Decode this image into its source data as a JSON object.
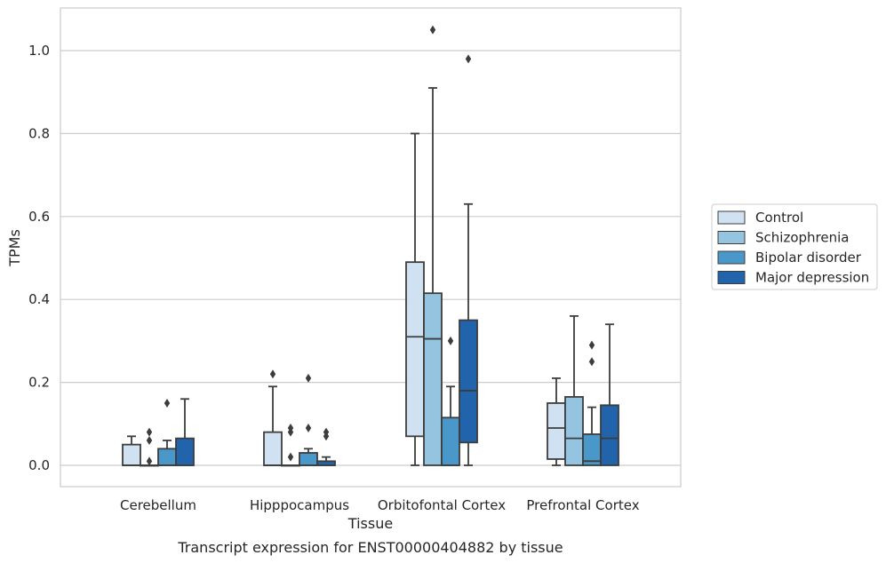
{
  "chart_data": {
    "type": "box",
    "title": "",
    "caption": "Transcript expression for ENST00000404882 by tissue",
    "xlabel": "Tissue",
    "ylabel": "TPMs",
    "ylim": [
      -0.05,
      1.1
    ],
    "yticks": [
      "0.0",
      "0.2",
      "0.4",
      "0.6",
      "0.8",
      "1.0"
    ],
    "ytick_values": [
      0.0,
      0.2,
      0.4,
      0.6,
      0.8,
      1.0
    ],
    "grid": "horizontal",
    "legend_position": "right",
    "categories": [
      "Cerebellum",
      "Hipppocampus",
      "Orbitofontal Cortex",
      "Prefrontal Cortex"
    ],
    "series": [
      {
        "name": "Control",
        "color": "#d0e1f2",
        "boxes": [
          {
            "whisker_low": 0.0,
            "q1": 0.0,
            "median": 0.0,
            "q3": 0.05,
            "whisker_high": 0.07,
            "outliers": []
          },
          {
            "whisker_low": 0.0,
            "q1": 0.0,
            "median": 0.0,
            "q3": 0.08,
            "whisker_high": 0.19,
            "outliers": [
              0.22
            ]
          },
          {
            "whisker_low": 0.0,
            "q1": 0.07,
            "median": 0.31,
            "q3": 0.49,
            "whisker_high": 0.8,
            "outliers": []
          },
          {
            "whisker_low": 0.0,
            "q1": 0.015,
            "median": 0.09,
            "q3": 0.15,
            "whisker_high": 0.21,
            "outliers": []
          }
        ]
      },
      {
        "name": "Schizophrenia",
        "color": "#94c4df",
        "boxes": [
          {
            "whisker_low": 0.0,
            "q1": 0.0,
            "median": 0.0,
            "q3": 0.0,
            "whisker_high": 0.0,
            "outliers": [
              0.01,
              0.06,
              0.08
            ]
          },
          {
            "whisker_low": 0.0,
            "q1": 0.0,
            "median": 0.0,
            "q3": 0.0,
            "whisker_high": 0.0,
            "outliers": [
              0.02,
              0.08,
              0.09
            ]
          },
          {
            "whisker_low": 0.0,
            "q1": 0.0,
            "median": 0.305,
            "q3": 0.415,
            "whisker_high": 0.91,
            "outliers": [
              1.05
            ]
          },
          {
            "whisker_low": 0.0,
            "q1": 0.0,
            "median": 0.065,
            "q3": 0.165,
            "whisker_high": 0.36,
            "outliers": []
          }
        ]
      },
      {
        "name": "Bipolar disorder",
        "color": "#4a98c9",
        "boxes": [
          {
            "whisker_low": 0.0,
            "q1": 0.0,
            "median": 0.0,
            "q3": 0.04,
            "whisker_high": 0.06,
            "outliers": [
              0.15
            ]
          },
          {
            "whisker_low": 0.0,
            "q1": 0.0,
            "median": 0.0,
            "q3": 0.03,
            "whisker_high": 0.04,
            "outliers": [
              0.09,
              0.21
            ]
          },
          {
            "whisker_low": 0.0,
            "q1": 0.0,
            "median": 0.0,
            "q3": 0.115,
            "whisker_high": 0.19,
            "outliers": [
              0.3
            ]
          },
          {
            "whisker_low": 0.0,
            "q1": 0.0,
            "median": 0.01,
            "q3": 0.075,
            "whisker_high": 0.14,
            "outliers": [
              0.25,
              0.29
            ]
          }
        ]
      },
      {
        "name": "Major depression",
        "color": "#2164ab",
        "boxes": [
          {
            "whisker_low": 0.0,
            "q1": 0.0,
            "median": 0.0,
            "q3": 0.065,
            "whisker_high": 0.16,
            "outliers": []
          },
          {
            "whisker_low": 0.0,
            "q1": 0.0,
            "median": 0.0,
            "q3": 0.01,
            "whisker_high": 0.02,
            "outliers": [
              0.07,
              0.08
            ]
          },
          {
            "whisker_low": 0.0,
            "q1": 0.055,
            "median": 0.18,
            "q3": 0.35,
            "whisker_high": 0.63,
            "outliers": [
              0.98
            ]
          },
          {
            "whisker_low": 0.0,
            "q1": 0.0,
            "median": 0.065,
            "q3": 0.145,
            "whisker_high": 0.34,
            "outliers": []
          }
        ]
      }
    ]
  }
}
